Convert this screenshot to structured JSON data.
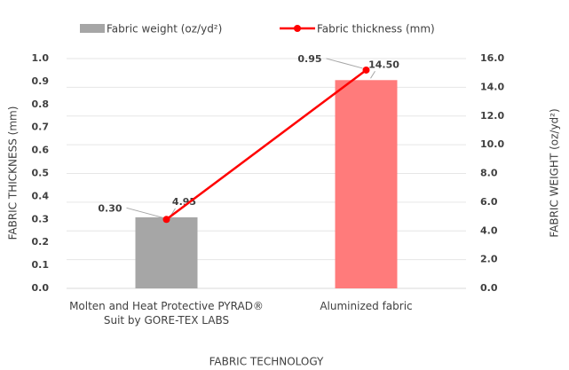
{
  "chart_data": {
    "type": "bar_line",
    "categories": [
      "Molten and Heat Protective PYRAD® Suit by GORE-TEX LABS",
      "Aluminized fabric"
    ],
    "series": [
      {
        "name": "Fabric weight (oz/yd²)",
        "type": "bar",
        "axis": "y2",
        "color": "#a6a6a6",
        "point_colors": [
          "#a6a6a6",
          "#ff7b7b"
        ],
        "values": [
          4.95,
          14.5
        ],
        "value_labels": [
          "4.95",
          "14.50"
        ]
      },
      {
        "name": "Fabric thickness (mm)",
        "type": "line",
        "axis": "y",
        "color": "#ff0000",
        "values": [
          0.3,
          0.95
        ],
        "value_labels": [
          "0.30",
          "0.95"
        ]
      }
    ],
    "xlabel": "FABRIC TECHNOLOGY",
    "ylabel": "FABRIC THICKNESS (mm)",
    "y2label": "FABRIC WEIGHT (oz/yd²)",
    "ylim": [
      0,
      1
    ],
    "yticks": [
      {
        "value": 0,
        "label": "0.0"
      },
      0.1,
      0.2,
      0.3,
      0.4,
      0.5,
      0.6,
      0.7,
      0.8,
      0.9,
      {
        "value": 1,
        "label": "1.0"
      }
    ],
    "y2lim": [
      0,
      16
    ],
    "y2ticks": [
      {
        "value": 0,
        "label": "0.0"
      },
      {
        "value": 2,
        "label": "2.0"
      },
      {
        "value": 4,
        "label": "4.0"
      },
      {
        "value": 6,
        "label": "6.0"
      },
      {
        "value": 8,
        "label": "8.0"
      },
      {
        "value": 10,
        "label": "10.0"
      },
      {
        "value": 12,
        "label": "12.0"
      },
      {
        "value": 14,
        "label": "14.0"
      },
      {
        "value": 16,
        "label": "16.0"
      }
    ],
    "legend": "top"
  }
}
